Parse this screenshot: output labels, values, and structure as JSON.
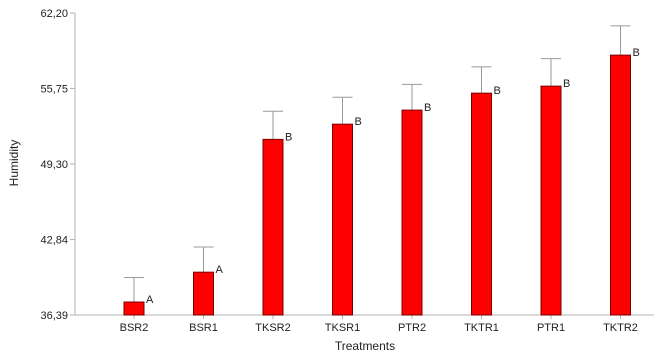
{
  "chart_data": {
    "type": "bar",
    "title": "",
    "xlabel": "Treatments",
    "ylabel": "Humidity",
    "categories": [
      "BSR2",
      "BSR1",
      "TKSR2",
      "TKSR1",
      "PTR2",
      "TKTR1",
      "PTR1",
      "TKTR2"
    ],
    "values": [
      37.5,
      40.05,
      51.4,
      52.7,
      53.9,
      55.35,
      55.95,
      58.6
    ],
    "error_upper": [
      39.6,
      42.2,
      53.8,
      55.0,
      56.1,
      57.6,
      58.3,
      61.1
    ],
    "significance_letters": [
      "A",
      "A",
      "B",
      "B",
      "B",
      "B",
      "B",
      "B"
    ],
    "yticks": [
      "62,20",
      "55,75",
      "49,30",
      "42,84",
      "36,39"
    ],
    "ytick_values": [
      62.2,
      55.75,
      49.3,
      42.84,
      36.39
    ],
    "ylim": [
      36.39,
      62.2
    ],
    "grid": false,
    "legend": "none",
    "bar_color": "#ff0000",
    "bar_edge_color": "#7a0000",
    "error_bar_color": "#9a9a9a",
    "axis_color": "#b4b4b4"
  }
}
